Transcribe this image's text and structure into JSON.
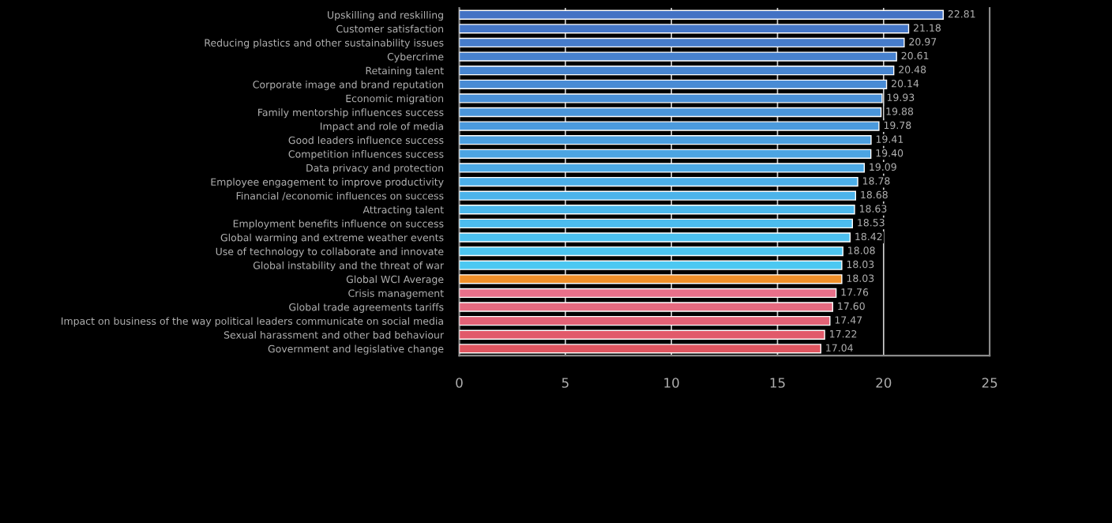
{
  "chart_data": {
    "type": "bar",
    "orientation": "horizontal",
    "categories": [
      "Upskilling and reskilling",
      "Customer satisfaction",
      "Reducing plastics and other sustainability issues",
      "Cybercrime",
      "Retaining talent",
      "Corporate image and brand reputation",
      "Economic migration",
      "Family mentorship influences success",
      "Impact and role of media",
      "Good leaders influence success",
      "Competition influences success",
      "Data privacy and protection",
      "Employee engagement to improve productivity",
      "Financial /economic influences on success",
      "Attracting talent",
      "Employment benefits influence on success",
      "Global warming and extreme weather events",
      "Use of technology to collaborate and innovate",
      "Global instability and the threat of war",
      "Global WCI Average",
      "Crisis management",
      "Global trade agreements tariffs",
      "Impact on business of the way political leaders communicate on social media",
      "Sexual harassment and other bad behaviour",
      "Government and legislative change"
    ],
    "values": [
      22.81,
      21.18,
      20.97,
      20.61,
      20.48,
      20.14,
      19.93,
      19.88,
      19.78,
      19.41,
      19.4,
      19.09,
      18.78,
      18.68,
      18.63,
      18.53,
      18.42,
      18.08,
      18.03,
      18.03,
      17.76,
      17.6,
      17.47,
      17.22,
      17.04
    ],
    "value_labels": [
      "22.81",
      "21.18",
      "20.97",
      "20.61",
      "20.48",
      "20.14",
      "19.93",
      "19.88",
      "19.78",
      "19.41",
      "19.40",
      "19.09",
      "18.78",
      "18.68",
      "18.63",
      "18.53",
      "18.42",
      "18.08",
      "18.03",
      "18.03",
      "17.76",
      "17.60",
      "17.47",
      "17.22",
      "17.04"
    ],
    "colors": [
      "#4472c4",
      "#4577c8",
      "#467ccb",
      "#4781ce",
      "#4886d1",
      "#498bd4",
      "#4a90d7",
      "#4a95da",
      "#4b9add",
      "#4c9fe0",
      "#4ca4e2",
      "#4ca9e5",
      "#4caee8",
      "#4cb3ea",
      "#4cb8ec",
      "#4cbcee",
      "#4cc0ef",
      "#4cc4f0",
      "#4cc8f2",
      "#f0902a",
      "#e8708a",
      "#e56a80",
      "#e36276",
      "#e15a6a",
      "#e05560"
    ],
    "xlim": [
      0,
      25
    ],
    "xticks": [
      0,
      5,
      10,
      15,
      20,
      25
    ],
    "grid": "x"
  }
}
